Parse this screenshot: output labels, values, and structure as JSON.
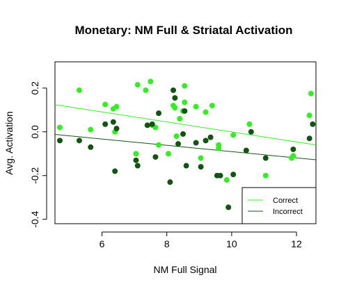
{
  "chart_data": {
    "type": "scatter",
    "title": "Monetary: NM Full & Striatal Activation",
    "xlabel": "NM Full Signal",
    "ylabel": "Avg. Activation",
    "xlim": [
      4.55,
      12.6
    ],
    "ylim": [
      -0.42,
      0.32
    ],
    "xticks": [
      6,
      8,
      10,
      12
    ],
    "yticks": [
      -0.4,
      -0.2,
      0.0,
      0.2
    ],
    "ytick_labels": [
      "-0.4",
      "-0.2",
      "0.0",
      "0.2"
    ],
    "legend_position": "bottom-right",
    "grid": false,
    "series": [
      {
        "name": "Correct",
        "color": "#33ee22",
        "points": [
          [
            4.7,
            0.02
          ],
          [
            5.3,
            0.19
          ],
          [
            5.65,
            0.01
          ],
          [
            6.1,
            0.125
          ],
          [
            6.35,
            0.105
          ],
          [
            6.45,
            0.115
          ],
          [
            6.4,
            0.0
          ],
          [
            7.05,
            -0.1
          ],
          [
            7.1,
            0.215
          ],
          [
            7.35,
            0.19
          ],
          [
            7.5,
            0.23
          ],
          [
            7.55,
            0.03
          ],
          [
            7.65,
            0.02
          ],
          [
            7.75,
            -0.06
          ],
          [
            8.05,
            -0.1
          ],
          [
            8.2,
            0.12
          ],
          [
            8.25,
            0.11
          ],
          [
            8.3,
            -0.02
          ],
          [
            8.4,
            0.06
          ],
          [
            8.5,
            0.095
          ],
          [
            8.55,
            0.135
          ],
          [
            8.55,
            0.21
          ],
          [
            8.9,
            0.115
          ],
          [
            9.05,
            -0.12
          ],
          [
            9.2,
            0.09
          ],
          [
            9.4,
            0.12
          ],
          [
            9.6,
            -0.06
          ],
          [
            9.6,
            -0.075
          ],
          [
            9.85,
            -0.22
          ],
          [
            10.05,
            -0.015
          ],
          [
            10.55,
            0.035
          ],
          [
            11.05,
            -0.2
          ],
          [
            11.85,
            -0.12
          ],
          [
            11.9,
            -0.11
          ],
          [
            12.4,
            0.075
          ],
          [
            12.45,
            0.175
          ]
        ],
        "fit": {
          "x": [
            4.55,
            12.6
          ],
          "y": [
            0.124,
            -0.06
          ]
        }
      },
      {
        "name": "Incorrect",
        "color": "#115511",
        "points": [
          [
            4.7,
            -0.04
          ],
          [
            5.3,
            -0.04
          ],
          [
            5.65,
            -0.07
          ],
          [
            6.1,
            0.035
          ],
          [
            6.35,
            0.045
          ],
          [
            6.45,
            0.015
          ],
          [
            6.4,
            -0.18
          ],
          [
            7.05,
            -0.13
          ],
          [
            7.1,
            -0.155
          ],
          [
            7.4,
            0.03
          ],
          [
            7.55,
            0.035
          ],
          [
            7.65,
            -0.115
          ],
          [
            7.75,
            0.085
          ],
          [
            8.1,
            -0.23
          ],
          [
            8.2,
            0.19
          ],
          [
            8.25,
            0.155
          ],
          [
            8.35,
            -0.055
          ],
          [
            8.55,
            0.095
          ],
          [
            8.5,
            -0.01
          ],
          [
            8.6,
            -0.155
          ],
          [
            8.9,
            -0.05
          ],
          [
            9.05,
            -0.16
          ],
          [
            9.2,
            -0.04
          ],
          [
            9.35,
            -0.025
          ],
          [
            9.55,
            -0.2
          ],
          [
            9.65,
            -0.2
          ],
          [
            9.9,
            -0.345
          ],
          [
            10.05,
            -0.195
          ],
          [
            10.45,
            -0.085
          ],
          [
            10.6,
            0.0
          ],
          [
            11.05,
            -0.12
          ],
          [
            11.9,
            -0.08
          ],
          [
            12.4,
            -0.03
          ],
          [
            12.5,
            0.035
          ]
        ],
        "fit": {
          "x": [
            4.55,
            12.6
          ],
          "y": [
            -0.012,
            -0.128
          ]
        }
      }
    ]
  }
}
